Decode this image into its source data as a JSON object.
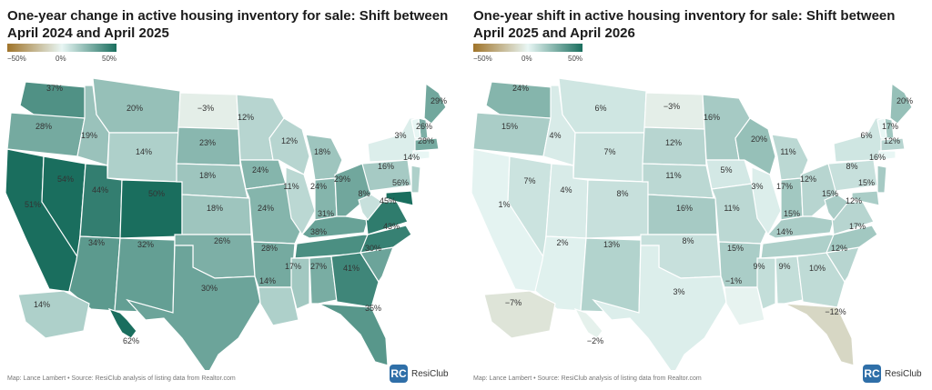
{
  "left": {
    "title": "One-year change in active housing inventory for sale: Shift between April 2024 and April 2025",
    "legend": {
      "ticks": [
        "−50%",
        "0%",
        "50%"
      ]
    },
    "footer": "Map: Lance Lambert • Source: ResiClub analysis of listing data from Realtor.com",
    "brand": {
      "logo": "RC",
      "name": "ResiClub"
    },
    "states": {
      "WA": "37%",
      "OR": "28%",
      "CA": "51%",
      "NV": "54%",
      "ID": "19%",
      "MT": "20%",
      "WY": "14%",
      "UT": "44%",
      "CO": "50%",
      "AZ": "34%",
      "NM": "32%",
      "ND": "−3%",
      "SD": "23%",
      "NE": "18%",
      "KS": "18%",
      "OK": "26%",
      "TX": "30%",
      "MN": "12%",
      "IA": "24%",
      "MO": "24%",
      "AR": "28%",
      "LA": "14%",
      "WI": "12%",
      "IL": "11%",
      "MI": "18%",
      "IN": "24%",
      "OH": "29%",
      "KY": "31%",
      "TN": "38%",
      "MS": "17%",
      "AL": "27%",
      "GA": "41%",
      "FL": "35%",
      "SC": "30%",
      "NC": "43%",
      "VA": "45%",
      "WV": "8%",
      "PA": "16%",
      "NY": "3%",
      "ME": "29%",
      "NH": "26%",
      "MA": "28%",
      "NJ": "14%",
      "MD": "56%",
      "AK": "14%",
      "HI": "62%"
    }
  },
  "right": {
    "title": "One-year shift in active housing inventory for sale: Shift between April 2025 and April 2026",
    "legend": {
      "ticks": [
        "−50%",
        "0%",
        "50%"
      ]
    },
    "footer": "Map: Lance Lambert • Source: ResiClub analysis of listing data from Realtor.com",
    "brand": {
      "logo": "RC",
      "name": "ResiClub"
    },
    "states": {
      "WA": "24%",
      "OR": "15%",
      "CA": "1%",
      "NV": "7%",
      "ID": "4%",
      "MT": "6%",
      "WY": "7%",
      "UT": "4%",
      "CO": "8%",
      "AZ": "2%",
      "NM": "13%",
      "ND": "−3%",
      "SD": "12%",
      "NE": "11%",
      "KS": "16%",
      "OK": "8%",
      "TX": "3%",
      "MN": "16%",
      "IA": "5%",
      "MO": "11%",
      "AR": "15%",
      "LA": "−1%",
      "WI": "20%",
      "IL": "3%",
      "MI": "11%",
      "IN": "17%",
      "OH": "12%",
      "KY": "15%",
      "TN": "14%",
      "MS": "9%",
      "AL": "9%",
      "GA": "10%",
      "FL": "−12%",
      "SC": "12%",
      "NC": "17%",
      "VA": "12%",
      "WV": "15%",
      "PA": "8%",
      "NY": "6%",
      "ME": "20%",
      "NH": "17%",
      "MA": "12%",
      "NJ": "16%",
      "MD": "15%",
      "AK": "−7%",
      "HI": "−2%"
    }
  },
  "colors": {
    "neg_end": "#a0742a",
    "zero": "#e8f6f4",
    "pos_end": "#1a6e5e",
    "border": "#ffffff"
  }
}
